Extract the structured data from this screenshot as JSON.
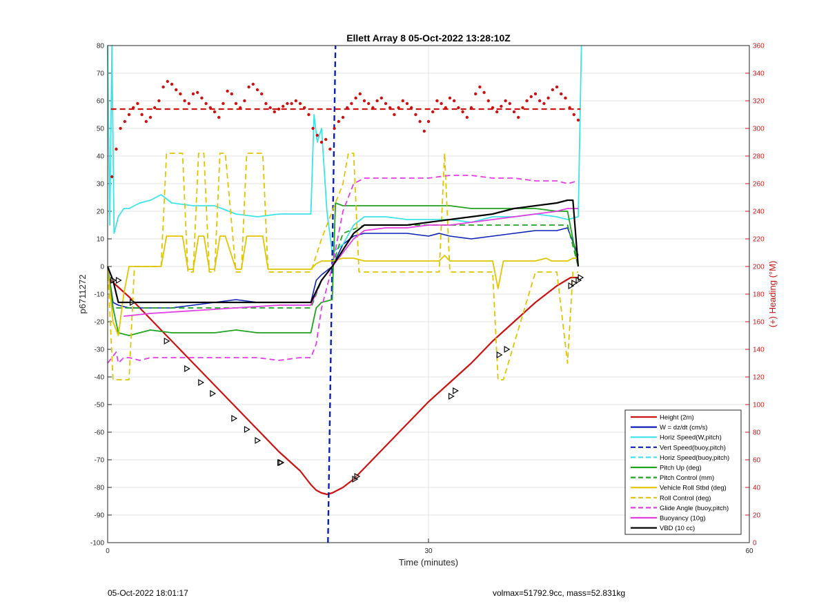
{
  "footer": {
    "left_text": "05-Oct-2022 18:01:17",
    "right_text": "volmax=51792.9cc, mass=52.831kg"
  },
  "chart_data": {
    "type": "line",
    "title": "Ellett Array 8 05-Oct-2022 13:28:10Z",
    "xlabel": "Time (minutes)",
    "ylabel": "p6711272",
    "y2label": "(+) Heading (°M)",
    "xlim": [
      0,
      60
    ],
    "ylim": [
      -100,
      80
    ],
    "y2lim": [
      0,
      360
    ],
    "xticks": [
      0,
      30,
      60
    ],
    "yticks": [
      80,
      70,
      60,
      50,
      40,
      30,
      20,
      10,
      0,
      -10,
      -20,
      -30,
      -40,
      -50,
      -60,
      -70,
      -80,
      -90,
      -100
    ],
    "y2ticks": [
      360,
      340,
      320,
      300,
      280,
      260,
      240,
      220,
      200,
      180,
      160,
      140,
      120,
      100,
      80,
      60,
      40,
      20,
      0
    ],
    "grid": true,
    "legend_position": "bottom-right",
    "colors": {
      "red": "#cc1111",
      "blue": "#0a1fb5",
      "cyan": "#3de3e8",
      "green": "#1ea31e",
      "yellow": "#e0c400",
      "magenta": "#e23de3",
      "black": "#000000",
      "y2axis": "#cc1111"
    },
    "legend": [
      {
        "name": "Height (2m)",
        "color": "#cc1111",
        "dash": false
      },
      {
        "name": "W = dz/dt (cm/s)",
        "color": "#0a1fb5",
        "dash": false
      },
      {
        "name": "Horiz Speed(W,pitch)",
        "color": "#3de3e8",
        "dash": false
      },
      {
        "name": "Vert Speed(buoy,pitch)",
        "color": "#0a1fb5",
        "dash": true
      },
      {
        "name": "Horiz Speed(buoy,pitch)",
        "color": "#3de3e8",
        "dash": true
      },
      {
        "name": "Pitch Up (deg)",
        "color": "#1ea31e",
        "dash": false
      },
      {
        "name": "Pitch Control (mm)",
        "color": "#1ea31e",
        "dash": true
      },
      {
        "name": "Vehicle Roll Stbd (deg)",
        "color": "#e0c400",
        "dash": false
      },
      {
        "name": "Roll Control (deg)",
        "color": "#e0c400",
        "dash": true
      },
      {
        "name": "Glide Angle (buoy,pitch)",
        "color": "#e23de3",
        "dash": true
      },
      {
        "name": "Buoyancy (10g)",
        "color": "#e23de3",
        "dash": false
      },
      {
        "name": "VBD (10 cc)",
        "color": "#000000",
        "dash": false
      }
    ],
    "series": [
      {
        "name": "Height (2m)",
        "color": "#cc1111",
        "dash": false,
        "width": 2.2,
        "x": [
          0,
          2,
          4,
          6,
          8,
          10,
          12,
          14,
          16,
          18,
          19,
          19.5,
          20,
          20.5,
          21,
          22,
          23,
          24,
          26,
          28,
          30,
          32,
          34,
          36,
          38,
          40,
          42,
          43.3,
          44
        ],
        "y": [
          -4,
          -11,
          -19,
          -27,
          -35,
          -43,
          -51,
          -59,
          -67,
          -74,
          -79,
          -81,
          -82,
          -82.5,
          -82,
          -80,
          -77,
          -73,
          -65,
          -57,
          -49,
          -42,
          -35,
          -27,
          -20,
          -13,
          -7,
          -4,
          -4
        ]
      },
      {
        "name": "W = dz/dt (cm/s)",
        "color": "#0a1fb5",
        "dash": false,
        "width": 1.6,
        "x": [
          0,
          0.5,
          1,
          2,
          4,
          6,
          8,
          10,
          12,
          14,
          16,
          18,
          19,
          19.5,
          20,
          21,
          22,
          23,
          24,
          26,
          28,
          30,
          31,
          32,
          34,
          36,
          38,
          40,
          42,
          43,
          44
        ],
        "y": [
          0,
          -13,
          -14,
          -15,
          -15,
          -15,
          -14,
          -13,
          -12,
          -13,
          -13,
          -13,
          -13,
          -5,
          -3,
          0,
          8,
          11,
          12,
          12,
          12,
          11,
          12,
          11,
          10,
          11,
          12,
          13,
          13,
          14,
          4
        ]
      },
      {
        "name": "Horiz Speed(W,pitch)",
        "color": "#3de3e8",
        "dash": false,
        "width": 1.8,
        "x": [
          0,
          0.2,
          0.4,
          0.6,
          1,
          1.5,
          2,
          3,
          4,
          5,
          6,
          8,
          10,
          12,
          14,
          16,
          18,
          19,
          19.3,
          19.6,
          20,
          20.5,
          21,
          22,
          23,
          24,
          26,
          28,
          30,
          32,
          34,
          36,
          38,
          40,
          42,
          43,
          44,
          44.3
        ],
        "y": [
          80,
          15,
          80,
          12,
          18,
          21,
          21,
          23,
          24,
          26,
          23,
          22,
          22,
          19,
          18,
          19,
          19,
          19,
          55,
          45,
          50,
          20,
          5,
          8,
          15,
          18,
          18,
          17,
          17,
          17,
          16,
          18,
          18,
          19,
          18,
          17,
          18,
          80
        ]
      },
      {
        "name": "Vert Speed(buoy,pitch)",
        "color": "#0a1fb5",
        "dash": true,
        "width": 2.4,
        "x": [
          20.6,
          21.3
        ],
        "y": [
          -100,
          80
        ]
      },
      {
        "name": "Pitch Up (deg)",
        "color": "#1ea31e",
        "dash": false,
        "width": 1.8,
        "x": [
          0,
          0.5,
          1,
          2,
          4,
          6,
          8,
          10,
          12,
          14,
          16,
          18,
          19,
          19.5,
          20,
          21,
          21.3,
          22,
          24,
          26,
          28,
          30,
          32,
          34,
          36,
          38,
          40,
          42,
          43,
          44
        ],
        "y": [
          0,
          -15,
          -24,
          -25,
          -23,
          -24,
          -24,
          -24,
          -23,
          -24,
          -24,
          -24,
          -24,
          -15,
          -13,
          -12,
          23,
          22,
          22,
          22,
          22,
          22,
          22,
          21,
          21,
          21,
          21,
          20,
          20,
          0
        ]
      },
      {
        "name": "Pitch Control (mm)",
        "color": "#1ea31e",
        "dash": true,
        "width": 1.8,
        "x": [
          0,
          0.5,
          1,
          4,
          8,
          12,
          16,
          19,
          19.5,
          20,
          21,
          22,
          24,
          28,
          32,
          36,
          40,
          43,
          44
        ],
        "y": [
          0,
          -15,
          -15,
          -15,
          -15,
          -15,
          -15,
          -15,
          -10,
          -5,
          0,
          12,
          15,
          15,
          15,
          15,
          15,
          15,
          0
        ]
      },
      {
        "name": "Vehicle Roll Stbd (deg)",
        "color": "#e0c400",
        "dash": false,
        "width": 1.8,
        "x": [
          0,
          0.5,
          1,
          1.5,
          2,
          3,
          4,
          5,
          5.5,
          6,
          7,
          7.5,
          8,
          8.5,
          9,
          9.5,
          10,
          10.5,
          11,
          12,
          12.5,
          13,
          14,
          14.5,
          15,
          16,
          16.5,
          19,
          19.5,
          20,
          21,
          22,
          23,
          24,
          26,
          28,
          30,
          31,
          31.5,
          32,
          36,
          36.5,
          37,
          40,
          41,
          41.5,
          43,
          43.5,
          44
        ],
        "y": [
          0,
          -20,
          -25,
          -10,
          0,
          0,
          0,
          0,
          11,
          11,
          11,
          -1,
          -1,
          11,
          11,
          -1,
          -1,
          11,
          11,
          -1,
          -1,
          11,
          11,
          11,
          -1,
          -1,
          -1,
          -1,
          1,
          2,
          2,
          3,
          3,
          2,
          2,
          2,
          2,
          2,
          4,
          2,
          2,
          -8,
          2,
          2,
          3,
          2,
          2,
          3,
          3
        ]
      },
      {
        "name": "Roll Control (deg)",
        "color": "#e0c400",
        "dash": true,
        "width": 1.8,
        "x": [
          0,
          0.5,
          1,
          2,
          2.5,
          5,
          5.5,
          6,
          7,
          7.5,
          8,
          8.5,
          9,
          9.5,
          10,
          10.5,
          11,
          12,
          12.5,
          13,
          14,
          14.5,
          15,
          16,
          16.5,
          19,
          20,
          21,
          22,
          22.5,
          23,
          23.5,
          24,
          30,
          31,
          31.5,
          32,
          36,
          36.5,
          37,
          40,
          41,
          42,
          43,
          43.5,
          44
        ],
        "y": [
          0,
          -41,
          -41,
          -41,
          0,
          0,
          41,
          41,
          41,
          -2,
          -2,
          41,
          41,
          -2,
          -2,
          41,
          41,
          -2,
          -2,
          41,
          41,
          41,
          -2,
          -2,
          -2,
          -2,
          10,
          20,
          30,
          41,
          41,
          -2,
          -2,
          -2,
          -2,
          41,
          -2,
          -2,
          -41,
          -41,
          -2,
          -2,
          -2,
          -35,
          -2,
          -2
        ]
      },
      {
        "name": "Glide Angle (buoy,pitch)",
        "color": "#e23de3",
        "dash": true,
        "width": 1.8,
        "x": [
          0,
          0.8,
          1,
          1.5,
          2,
          3,
          4,
          6,
          8,
          10,
          12,
          14,
          16,
          18,
          19,
          19.5,
          20,
          21,
          22,
          23,
          24,
          26,
          28,
          30,
          32,
          34,
          36,
          38,
          40,
          42,
          43,
          44
        ],
        "y": [
          -35,
          -31,
          -35,
          -33,
          -33,
          -34,
          -33,
          -33,
          -33,
          -33,
          -33,
          -33,
          -34,
          -33,
          -33,
          -28,
          -15,
          0,
          20,
          30,
          32,
          32,
          32,
          32,
          33,
          33,
          32,
          32,
          31,
          31,
          30,
          31
        ]
      },
      {
        "name": "Buoyancy (10g)",
        "color": "#e23de3",
        "dash": false,
        "width": 1.8,
        "x": [
          1.5,
          4,
          8,
          12,
          16,
          19,
          20,
          21,
          22,
          23,
          24,
          26,
          28,
          30,
          32,
          34,
          36,
          38,
          40,
          42,
          43,
          44
        ],
        "y": [
          -18,
          -17,
          -16,
          -15,
          -14,
          -14,
          -5,
          0,
          5,
          10,
          13,
          14,
          14,
          15,
          15,
          16,
          17,
          18,
          19,
          20,
          21,
          21
        ]
      },
      {
        "name": "VBD (10 cc)",
        "color": "#000000",
        "dash": false,
        "width": 2.2,
        "x": [
          0,
          0.5,
          1,
          2,
          4,
          8,
          12,
          16,
          19,
          20,
          21,
          22,
          23,
          24,
          26,
          28,
          30,
          32,
          34,
          36,
          38,
          40,
          42,
          43,
          43.5,
          44
        ],
        "y": [
          0,
          -5,
          -13,
          -13,
          -13,
          -13,
          -13,
          -13,
          -13,
          -5,
          0,
          6,
          12,
          15,
          15,
          15,
          16,
          17,
          18,
          19,
          21,
          22,
          23,
          24,
          24,
          0
        ]
      }
    ],
    "heading_series": {
      "name": "Heading",
      "color": "#cc1111",
      "axis": "right",
      "mean": 314,
      "x": [
        0.4,
        0.8,
        1.2,
        1.6,
        2.0,
        2.4,
        2.8,
        3.2,
        3.6,
        4.0,
        4.4,
        4.8,
        5.2,
        5.6,
        6.0,
        6.4,
        6.8,
        7.2,
        7.6,
        8.0,
        8.4,
        8.8,
        9.2,
        9.6,
        10.0,
        10.4,
        10.8,
        11.2,
        11.6,
        12.0,
        12.4,
        12.8,
        13.2,
        13.6,
        14.0,
        14.4,
        14.8,
        15.2,
        15.6,
        16.0,
        16.4,
        16.8,
        17.2,
        17.6,
        18.0,
        18.4,
        18.8,
        19.2,
        19.6,
        20.0,
        20.4,
        20.8,
        21.2,
        21.6,
        22.0,
        22.4,
        22.8,
        23.2,
        23.6,
        24.0,
        24.4,
        24.8,
        25.2,
        25.6,
        26.0,
        26.4,
        26.8,
        27.2,
        27.6,
        28.0,
        28.4,
        28.8,
        29.2,
        29.6,
        30.0,
        30.4,
        30.8,
        31.2,
        31.6,
        32.0,
        32.4,
        32.8,
        33.2,
        33.6,
        34.0,
        34.4,
        34.8,
        35.2,
        35.6,
        36.0,
        36.4,
        36.8,
        37.2,
        37.6,
        38.0,
        38.4,
        38.8,
        39.2,
        39.6,
        40.0,
        40.4,
        40.8,
        41.2,
        41.6,
        42.0,
        42.4,
        42.8,
        43.2,
        43.6,
        44.0
      ],
      "y": [
        265,
        285,
        300,
        305,
        310,
        315,
        318,
        310,
        305,
        308,
        315,
        320,
        330,
        334,
        332,
        328,
        325,
        320,
        318,
        325,
        326,
        322,
        318,
        315,
        312,
        308,
        318,
        327,
        325,
        318,
        315,
        320,
        330,
        332,
        328,
        325,
        318,
        315,
        312,
        314,
        316,
        318,
        318,
        320,
        318,
        315,
        310,
        300,
        295,
        290,
        292,
        285,
        300,
        305,
        308,
        315,
        318,
        322,
        325,
        320,
        318,
        315,
        320,
        322,
        318,
        315,
        310,
        315,
        320,
        318,
        315,
        310,
        305,
        298,
        305,
        312,
        320,
        318,
        315,
        322,
        320,
        315,
        312,
        308,
        315,
        325,
        330,
        326,
        320,
        315,
        312,
        316,
        320,
        318,
        312,
        308,
        315,
        320,
        323,
        325,
        320,
        318,
        322,
        328,
        330,
        325,
        322,
        315,
        310,
        306
      ]
    },
    "markers": {
      "shape": "triangle",
      "color": "#000000",
      "x": [
        0.5,
        1,
        2.3,
        5.5,
        7.4,
        8.7,
        9.8,
        11.8,
        13,
        14,
        16.1,
        16.2,
        23.1,
        23.3,
        32.1,
        32.5,
        36.6,
        37.3,
        43.3,
        43.6,
        44,
        44.2
      ],
      "y": [
        -5,
        -5,
        -13,
        -27,
        -37,
        -42,
        -46,
        -55,
        -59,
        -63,
        -71,
        -71,
        -77,
        -76,
        -47,
        -45,
        -32,
        -30,
        -7,
        -6,
        -5,
        -4
      ]
    }
  }
}
